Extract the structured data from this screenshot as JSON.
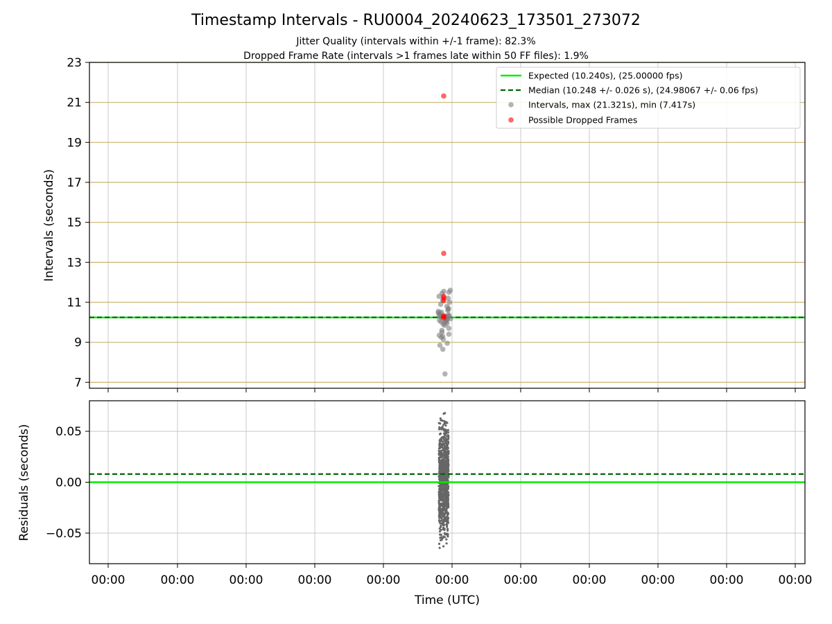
{
  "colors": {
    "expected": "#00ee00",
    "median": "#006400",
    "intervals": "#808080",
    "dropped": "#ff0000",
    "hgrid_top": "#c8b46e",
    "grid": "#c8c8c8"
  },
  "chart_data": [
    {
      "type": "scatter",
      "panel": "intervals",
      "title": "Timestamp Intervals - RU0004_20240623_173501_273072",
      "subtitle_lines": [
        "Jitter Quality (intervals within +/-1 frame): 82.3%",
        "Dropped Frame Rate (intervals >1 frames late within 50 FF files): 1.9%"
      ],
      "ylabel": "Intervals (seconds)",
      "ylim": [
        6.7,
        23.0
      ],
      "yticks": [
        7,
        9,
        11,
        13,
        15,
        17,
        19,
        21,
        23
      ],
      "ytick_labels": [
        "7",
        "9",
        "11",
        "13",
        "15",
        "17",
        "19",
        "21",
        "23"
      ],
      "xtick_labels": [
        "00:00",
        "00:00",
        "00:00",
        "00:00",
        "00:00",
        "00:00",
        "00:00",
        "00:00",
        "00:00",
        "00:00",
        "00:00"
      ],
      "grid": true,
      "legend_position": "top-right",
      "series": [
        {
          "name": "Expected (10.240s), (25.00000 fps)",
          "style": "solid-line",
          "y": 10.24
        },
        {
          "name": "Median (10.248 +/- 0.026 s), (24.98067 +/- 0.06 fps)",
          "style": "dashed-line",
          "y": 10.248
        },
        {
          "name": "Intervals, max (21.321s), min (7.417s)",
          "style": "grey-dots",
          "values": [
            10.12,
            10.25,
            10.3,
            10.18,
            10.05,
            10.22,
            10.4,
            10.33,
            10.15,
            10.28,
            9.95,
            10.5,
            10.6,
            10.1,
            9.85,
            10.45,
            10.35,
            10.2,
            9.7,
            10.7,
            10.55,
            9.9,
            10.8,
            9.6,
            10.9,
            9.5,
            11.0,
            9.4,
            11.1,
            9.3,
            11.2,
            9.35,
            11.3,
            9.25,
            11.45,
            11.55,
            11.6,
            9.15,
            8.95,
            8.85,
            8.65,
            11.5,
            10.65,
            10.02,
            9.98,
            10.38,
            10.08,
            10.48,
            7.417
          ]
        },
        {
          "name": "Possible Dropped Frames",
          "style": "red-dots",
          "values": [
            21.321,
            13.45,
            11.3,
            11.22,
            11.08,
            10.32,
            10.28,
            10.22
          ]
        }
      ]
    },
    {
      "type": "scatter",
      "panel": "residuals",
      "xlabel": "Time (UTC)",
      "ylabel": "Residuals (seconds)",
      "ylim": [
        -0.08,
        0.08
      ],
      "yticks": [
        -0.05,
        0.0,
        0.05
      ],
      "ytick_labels": [
        "−0.05",
        "0.00",
        "0.05"
      ],
      "xtick_labels": [
        "00:00",
        "00:00",
        "00:00",
        "00:00",
        "00:00",
        "00:00",
        "00:00",
        "00:00",
        "00:00",
        "00:00",
        "00:00"
      ],
      "grid": true,
      "series": [
        {
          "name": "expected",
          "style": "solid-line",
          "y": 0.0
        },
        {
          "name": "median",
          "style": "dashed-line",
          "y": 0.008
        },
        {
          "name": "residuals",
          "style": "grey-dots",
          "count": 900,
          "min": -0.075,
          "max": 0.078
        }
      ]
    }
  ]
}
